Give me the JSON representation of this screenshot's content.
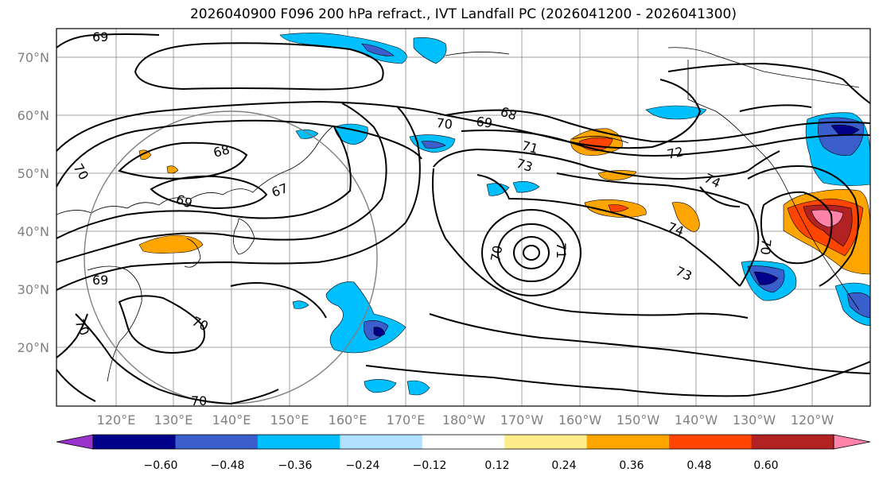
{
  "title": "2026040900 F096 200 hPa refract., IVT Landfall PC (2026041200 - 2026041300)",
  "lat_labels": [
    "70°N",
    "60°N",
    "50°N",
    "40°N",
    "30°N",
    "20°N"
  ],
  "lon_labels": [
    "120°E",
    "130°E",
    "140°E",
    "150°E",
    "160°E",
    "170°E",
    "180°W",
    "170°W",
    "160°W",
    "150°W",
    "140°W",
    "130°W",
    "120°W"
  ],
  "colorbar": {
    "colors": [
      "#9932cc",
      "#00008b",
      "#3a5fcd",
      "#00bfff",
      "#b0e2ff",
      "#ffffff",
      "#ffec8b",
      "#ffa500",
      "#ff4500",
      "#b22222",
      "#ff82ab"
    ],
    "ticks": [
      "−0.60",
      "−0.48",
      "−0.36",
      "−0.24",
      "−0.12",
      "0.12",
      "0.24",
      "0.36",
      "0.48",
      "0.60"
    ]
  },
  "contour_labels": {
    "c69_nw": "69",
    "c68_a": "68",
    "c69_a": "69",
    "c70_a": "70",
    "c71_a": "71",
    "c72_a": "72",
    "c73_a": "73",
    "c74_a": "74",
    "c74_b": "74",
    "c73_b": "73",
    "c67_a": "67",
    "c68_b": "68",
    "c69_b": "69",
    "c70_b": "70",
    "c69_c": "69",
    "c70_c": "70",
    "c70_d": "70",
    "c70_e": "70",
    "c71_b": "71",
    "c70_f": "70",
    "c70_g": "70"
  }
}
